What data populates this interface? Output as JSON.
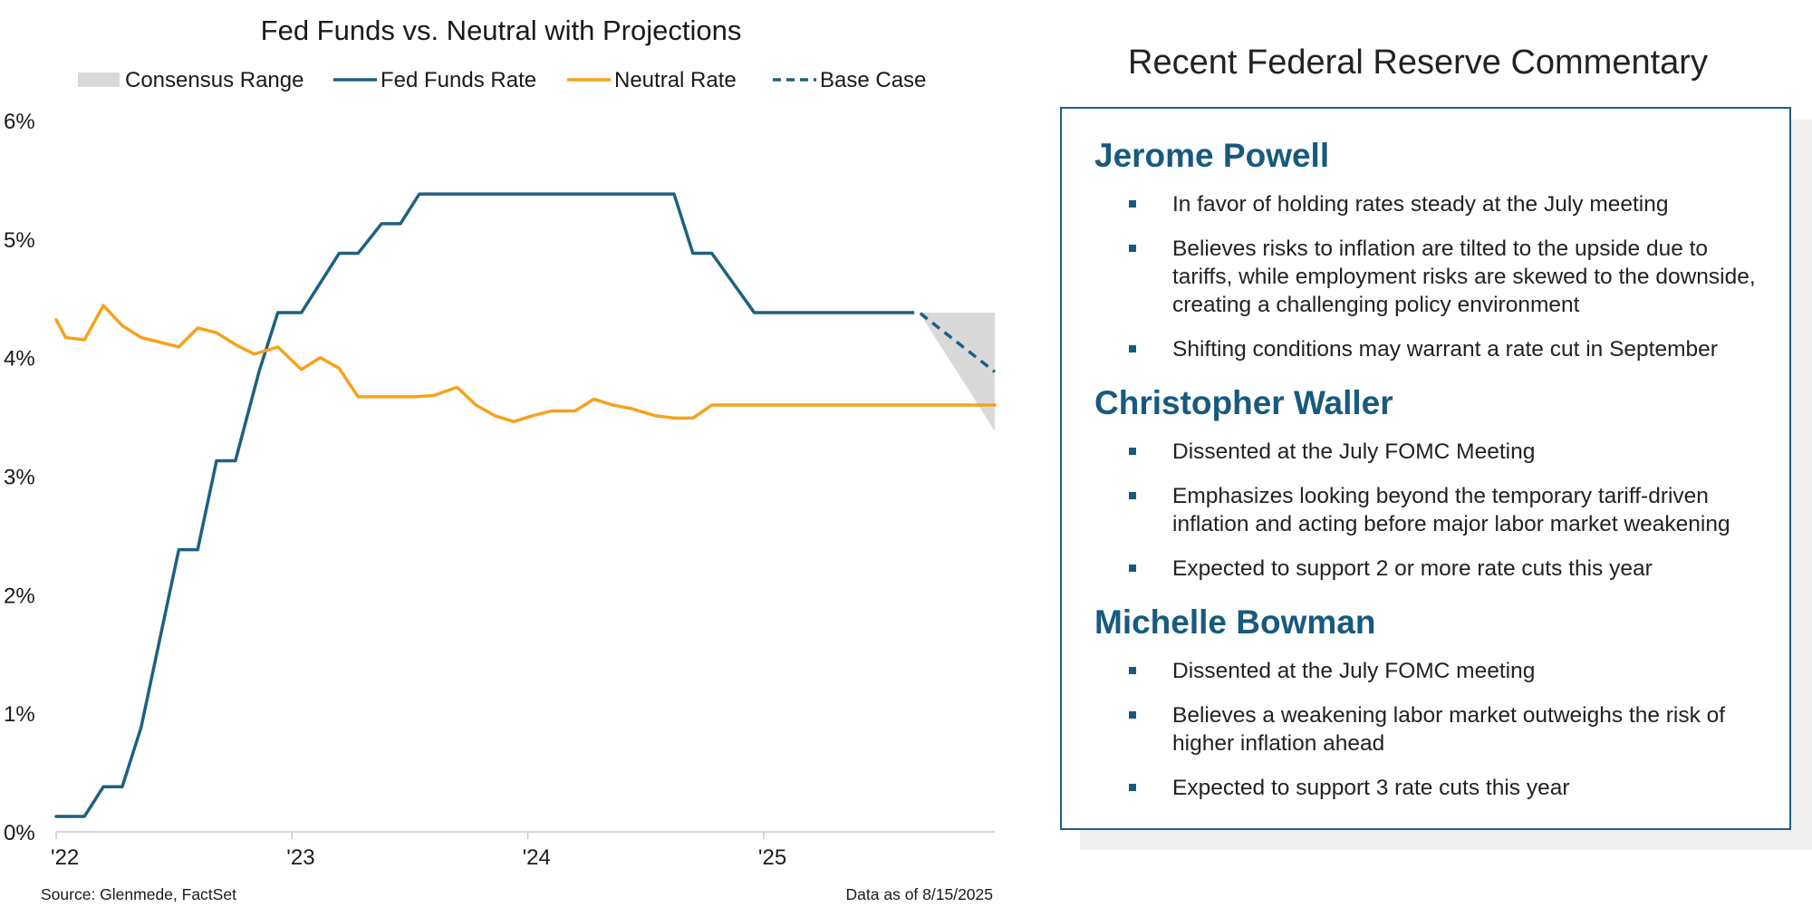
{
  "chart_data": {
    "type": "line",
    "title": "Fed Funds vs. Neutral with Projections",
    "legend": [
      {
        "label": "Consensus Range",
        "style": "area",
        "color": "#d9d9d9"
      },
      {
        "label": "Fed Funds Rate",
        "style": "solid",
        "color": "#1d6183"
      },
      {
        "label": "Neutral Rate",
        "style": "solid",
        "color": "#f7a21b"
      },
      {
        "label": "Base Case",
        "style": "dashed",
        "color": "#1d6183"
      }
    ],
    "legend_position": "top",
    "x_ticks": [
      "'22",
      "'23",
      "'24",
      "'25"
    ],
    "x_tick_values": [
      2022.0,
      2023.0,
      2024.0,
      2025.0
    ],
    "xlim": [
      2022.0,
      2025.98
    ],
    "y_ticks": [
      "0%",
      "1%",
      "2%",
      "3%",
      "4%",
      "5%",
      "6%"
    ],
    "y_tick_values": [
      0,
      1,
      2,
      3,
      4,
      5,
      6
    ],
    "ylim": [
      0,
      6
    ],
    "grid": false,
    "series": [
      {
        "name": "Fed Funds Rate",
        "color": "#1d6183",
        "x": [
          2022.0,
          2022.12,
          2022.2,
          2022.28,
          2022.36,
          2022.52,
          2022.6,
          2022.68,
          2022.76,
          2022.86,
          2022.94,
          2023.04,
          2023.2,
          2023.28,
          2023.38,
          2023.46,
          2023.54,
          2024.62,
          2024.7,
          2024.78,
          2024.96,
          2025.6
        ],
        "y": [
          0.13,
          0.13,
          0.38,
          0.38,
          0.88,
          2.38,
          2.38,
          3.13,
          3.13,
          3.88,
          4.38,
          4.38,
          4.88,
          4.88,
          5.13,
          5.13,
          5.38,
          5.38,
          4.88,
          4.88,
          4.38,
          4.38
        ]
      },
      {
        "name": "Neutral Rate",
        "color": "#f7a21b",
        "x": [
          2022.0,
          2022.04,
          2022.12,
          2022.2,
          2022.28,
          2022.36,
          2022.44,
          2022.52,
          2022.6,
          2022.68,
          2022.76,
          2022.84,
          2022.94,
          2023.04,
          2023.12,
          2023.2,
          2023.28,
          2023.36,
          2023.44,
          2023.52,
          2023.6,
          2023.7,
          2023.78,
          2023.86,
          2023.94,
          2024.02,
          2024.1,
          2024.2,
          2024.28,
          2024.36,
          2024.44,
          2024.54,
          2024.62,
          2024.7,
          2024.78,
          2025.98
        ],
        "y": [
          4.32,
          4.17,
          4.15,
          4.44,
          4.27,
          4.17,
          4.13,
          4.09,
          4.25,
          4.21,
          4.11,
          4.03,
          4.09,
          3.9,
          4.0,
          3.91,
          3.67,
          3.67,
          3.67,
          3.67,
          3.68,
          3.75,
          3.6,
          3.51,
          3.46,
          3.51,
          3.55,
          3.55,
          3.65,
          3.6,
          3.57,
          3.51,
          3.49,
          3.49,
          3.6,
          3.6
        ]
      },
      {
        "name": "Base Case",
        "color": "#1d6183",
        "dashed": true,
        "x": [
          2025.6,
          2025.66,
          2025.98
        ],
        "y": [
          4.38,
          4.38,
          3.88
        ]
      }
    ],
    "consensus_range": {
      "name": "Consensus Range",
      "color": "#d9d9d9",
      "x": [
        2025.6,
        2025.66,
        2025.98
      ],
      "upper": [
        4.38,
        4.38,
        4.38
      ],
      "lower": [
        4.38,
        4.38,
        3.38
      ]
    },
    "source_note": "Source: Glenmede, FactSet",
    "date_note": "Data as of 8/15/2025"
  },
  "commentary": {
    "title": "Recent Federal Reserve Commentary",
    "speakers": [
      {
        "name": "Jerome Powell",
        "points": [
          "In favor of holding rates steady at the July meeting",
          "Believes risks to inflation are tilted to the upside due to tariffs, while employment risks are skewed to the downside, creating a challenging policy environment",
          "Shifting conditions may warrant a rate cut in September"
        ]
      },
      {
        "name": "Christopher Waller",
        "points": [
          "Dissented at the July FOMC Meeting",
          "Emphasizes looking beyond the temporary tariff-driven inflation and acting before major labor market weakening",
          "Expected to support 2 or more rate cuts this year"
        ]
      },
      {
        "name": "Michelle Bowman",
        "points": [
          "Dissented at the July FOMC meeting",
          "Believes a weakening labor market outweighs the risk of higher inflation ahead",
          "Expected to support 3 rate cuts this year"
        ]
      }
    ],
    "accent_color": "#175a7e"
  }
}
